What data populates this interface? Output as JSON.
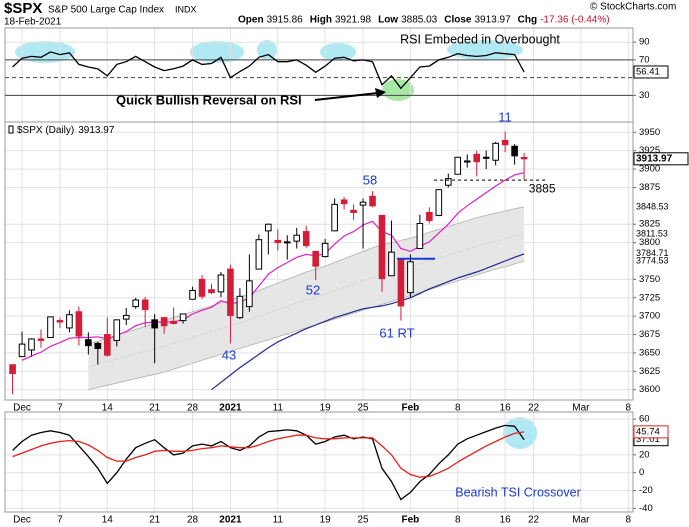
{
  "header": {
    "symbol": "$SPX",
    "name": "S&P 500 Large Cap Index",
    "exchange": "INDX",
    "date": "18-Feb-2021",
    "quote": [
      {
        "label": "Open",
        "value": 3915.86
      },
      {
        "label": "High",
        "value": 3921.98
      },
      {
        "label": "Low",
        "value": 3885.03
      },
      {
        "label": "Close",
        "value": 3913.97
      },
      {
        "label": "Chg",
        "value": "-17.36 (-0.44%)"
      }
    ],
    "copyright": "© StockCharts.com"
  },
  "chart_data": [
    {
      "type": "line",
      "series": [
        {
          "color": "#000000",
          "values": [
            62,
            72,
            74,
            73,
            79,
            76,
            78,
            65,
            62,
            60,
            52,
            65,
            68,
            74,
            68,
            62,
            58,
            60,
            63,
            70,
            65,
            66,
            73,
            50,
            57,
            63,
            73,
            76,
            68,
            68,
            70,
            64,
            56,
            63,
            72,
            73,
            69,
            70,
            68,
            42,
            52,
            38,
            50,
            62,
            63,
            70,
            73,
            77,
            75,
            74,
            75,
            78,
            77,
            76,
            56.41
          ]
        }
      ],
      "ylim": [
        0,
        106
      ],
      "yticks": [
        30,
        70,
        90
      ],
      "reference_lines": [
        30,
        50,
        70
      ],
      "annotations": [
        "RSI Embeded in Overbought",
        "Quick Bullish Reversal on RSI"
      ]
    },
    {
      "type": "candlestick",
      "legend": "$SPX (Daily)",
      "open": [
        3634,
        3645,
        3654,
        3669,
        3671,
        3694,
        3684,
        3706,
        3660,
        3656,
        3675,
        3667,
        3696,
        3713,
        3722,
        3684,
        3698,
        3693,
        3694,
        3723,
        3750,
        3736,
        3733,
        3764,
        3698,
        3713,
        3764,
        3816,
        3803,
        3801,
        3802,
        3815,
        3788,
        3781,
        3816,
        3858,
        3844,
        3851,
        3863,
        3837,
        3755,
        3778,
        3732,
        3792,
        3841,
        3837,
        3878,
        3893,
        3911,
        3920,
        3916,
        3912,
        3939,
        3918,
        3915.86
      ],
      "high": [
        3634,
        3679,
        3670,
        3682,
        3699,
        3698,
        3708,
        3713,
        3678,
        3665,
        3698,
        3695,
        3711,
        3725,
        3726,
        3703,
        3698,
        3712,
        3703,
        3740,
        3756,
        3744,
        3760,
        3770,
        3738,
        3784,
        3811,
        3826,
        3818,
        3810,
        3820,
        3823,
        3789,
        3805,
        3860,
        3862,
        3852,
        3860,
        3870,
        3837,
        3830,
        3778,
        3784,
        3838,
        3848,
        3872,
        3894,
        3916,
        3920,
        3925,
        3925,
        3937,
        3951,
        3934,
        3921.98
      ],
      "low": [
        3594,
        3645,
        3645,
        3657,
        3671,
        3684,
        3678,
        3660,
        3648,
        3634,
        3645,
        3659,
        3688,
        3710,
        3685,
        3636,
        3676,
        3689,
        3690,
        3723,
        3723,
        3730,
        3726,
        3663,
        3696,
        3706,
        3764,
        3784,
        3789,
        3777,
        3792,
        3793,
        3749,
        3780,
        3816,
        3845,
        3831,
        3792,
        3848,
        3733,
        3755,
        3694,
        3726,
        3792,
        3826,
        3836,
        3875,
        3893,
        3902,
        3890,
        3900,
        3905,
        3923,
        3906,
        3885.03
      ],
      "close": [
        3622,
        3662,
        3669,
        3667,
        3699,
        3692,
        3702,
        3673,
        3668,
        3663,
        3647,
        3695,
        3701,
        3722,
        3709,
        3695,
        3687,
        3690,
        3703,
        3735,
        3727,
        3732,
        3756,
        3701,
        3727,
        3748,
        3804,
        3825,
        3800,
        3801,
        3810,
        3796,
        3768,
        3799,
        3852,
        3853,
        3841,
        3855,
        3850,
        3751,
        3787,
        3714,
        3774,
        3826,
        3830,
        3872,
        3887,
        3916,
        3911,
        3910,
        3916,
        3935,
        3933,
        3931,
        3913.97
      ],
      "series": [
        {
          "color": "#e020c8",
          "values": [
            null,
            3640,
            3646,
            3651,
            3659,
            3664,
            3670,
            3671,
            3671,
            3672,
            3669,
            3674,
            3679,
            3687,
            3691,
            3692,
            3692,
            3692,
            3695,
            3703,
            3708,
            3712,
            3721,
            3717,
            3719,
            3725,
            3741,
            3757,
            3766,
            3773,
            3780,
            3784,
            3782,
            3785,
            3798,
            3809,
            3815,
            3824,
            3829,
            3815,
            3810,
            3792,
            3788,
            3795,
            3801,
            3813,
            3825,
            3840,
            3850,
            3859,
            3868,
            3877,
            3885,
            3892,
            3895
          ]
        },
        {
          "color": "#b0b0b0",
          "values": [
            null,
            null,
            null,
            null,
            null,
            null,
            null,
            null,
            3662,
            3666,
            3670,
            3674,
            3678,
            3682,
            3686,
            3690,
            3694,
            3698,
            3702,
            3706,
            3710,
            3714,
            3718,
            3722,
            3726,
            3730,
            3735,
            3740,
            3745,
            3750,
            3755,
            3760,
            3764,
            3768,
            3773,
            3778,
            3783,
            3788,
            3793,
            3797,
            3800,
            3803,
            3806,
            3810,
            3814,
            3818,
            3822,
            3826,
            3830,
            3834,
            3837,
            3840,
            3843,
            3846,
            3848.53
          ]
        },
        {
          "color": "#b8b8b8",
          "values": [
            null,
            null,
            null,
            null,
            null,
            null,
            null,
            null,
            3631,
            3635,
            3638,
            3642,
            3645,
            3649,
            3652,
            3656,
            3659,
            3663,
            3667,
            3671,
            3675,
            3679,
            3683,
            3687,
            3691,
            3695,
            3700,
            3704,
            3709,
            3713,
            3718,
            3722,
            3726,
            3730,
            3735,
            3739,
            3744,
            3748,
            3753,
            3757,
            3760,
            3764,
            3767,
            3771,
            3775,
            3779,
            3783,
            3787,
            3791,
            3795,
            3799,
            3802,
            3805,
            3809,
            3811.53
          ]
        },
        {
          "color": "#b0b0b0",
          "values": [
            null,
            null,
            null,
            null,
            null,
            null,
            null,
            null,
            3600,
            3603,
            3606,
            3609,
            3612,
            3615,
            3618,
            3621,
            3624,
            3628,
            3632,
            3636,
            3640,
            3644,
            3648,
            3652,
            3656,
            3660,
            3664,
            3668,
            3672,
            3676,
            3680,
            3684,
            3688,
            3692,
            3696,
            3700,
            3704,
            3708,
            3712,
            3716,
            3720,
            3724,
            3728,
            3732,
            3736,
            3740,
            3744,
            3748,
            3752,
            3756,
            3760,
            3764,
            3767,
            3771,
            3774.53
          ]
        },
        {
          "color": "#1c2a8c",
          "values": [
            null,
            null,
            null,
            null,
            null,
            null,
            null,
            null,
            null,
            null,
            null,
            null,
            null,
            null,
            null,
            null,
            null,
            null,
            null,
            null,
            null,
            3600,
            3610,
            3620,
            3630,
            3639,
            3648,
            3657,
            3665,
            3671,
            3677,
            3683,
            3688,
            3693,
            3698,
            3702,
            3706,
            3710,
            3712,
            3714,
            3717,
            3721,
            3725,
            3731,
            3737,
            3742,
            3747,
            3752,
            3756,
            3760,
            3765,
            3770,
            3775,
            3780,
            3784.71
          ]
        }
      ],
      "ylim": [
        3586,
        3964
      ],
      "yticks": [
        3600,
        3625,
        3650,
        3675,
        3700,
        3725,
        3750,
        3800,
        3825,
        3875,
        3900,
        3925,
        3950
      ],
      "xlim": [
        -0.8,
        65.5
      ],
      "xticks": [
        {
          "value": 1,
          "label": "Dec"
        },
        {
          "value": 5,
          "label": "7"
        },
        {
          "value": 10,
          "label": "14"
        },
        {
          "value": 15,
          "label": "21"
        },
        {
          "value": 19,
          "label": "28"
        },
        {
          "value": 23,
          "label": "2021"
        },
        {
          "value": 28,
          "label": "11"
        },
        {
          "value": 33,
          "label": "19"
        },
        {
          "value": 37,
          "label": "25"
        },
        {
          "value": 42,
          "label": "Feb"
        },
        {
          "value": 47,
          "label": "8"
        },
        {
          "value": 52,
          "label": "16"
        },
        {
          "value": 55,
          "label": "22"
        },
        {
          "value": 60,
          "label": "Mar"
        },
        {
          "value": 65,
          "label": "8"
        }
      ],
      "support": 3885,
      "retest_level": 3778,
      "annotations": [
        "58",
        "52",
        "43",
        "61 RT",
        "11"
      ]
    },
    {
      "type": "line",
      "series": [
        {
          "color": "#000000",
          "values": [
            25,
            35,
            42,
            45,
            47,
            45,
            42,
            30,
            18,
            5,
            -12,
            0,
            15,
            28,
            33,
            37,
            28,
            20,
            22,
            30,
            32,
            30,
            35,
            28,
            25,
            30,
            40,
            46,
            47,
            48,
            47,
            42,
            32,
            35,
            40,
            42,
            38,
            40,
            38,
            5,
            -10,
            -30,
            -22,
            -10,
            -2,
            10,
            20,
            32,
            38,
            42,
            46,
            50,
            53,
            52,
            37.01
          ]
        },
        {
          "color": "#e8201a",
          "values": [
            18,
            22,
            26,
            30,
            33,
            35,
            36,
            35,
            31,
            25,
            17,
            13,
            13,
            17,
            20,
            24,
            25,
            24,
            24,
            25,
            27,
            28,
            30,
            29,
            28,
            28,
            31,
            35,
            38,
            40,
            42,
            42,
            39,
            38,
            38,
            39,
            39,
            39,
            39,
            30,
            20,
            5,
            -2,
            -5,
            -4,
            0,
            5,
            12,
            18,
            24,
            30,
            35,
            40,
            44,
            45.74
          ]
        }
      ],
      "ylim": [
        -44,
        68
      ],
      "yticks": [
        -40,
        -20,
        0,
        20,
        60
      ],
      "annotations": [
        "Bearish TSI Crossover"
      ]
    }
  ]
}
